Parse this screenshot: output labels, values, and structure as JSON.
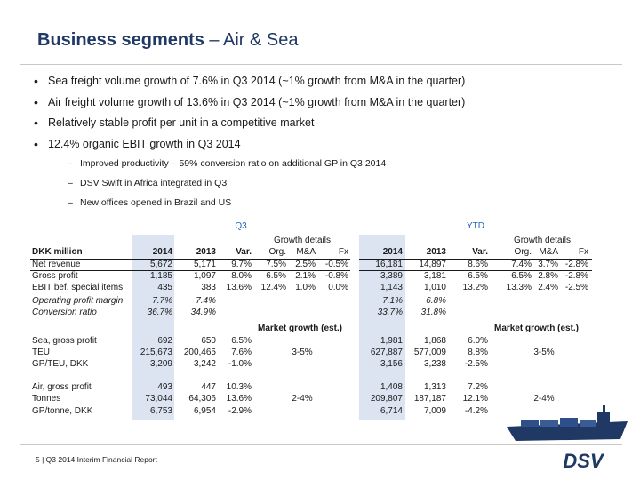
{
  "title": {
    "bold": "Business segments",
    "rest": "– Air & Sea"
  },
  "bullets": [
    "Sea freight volume growth of 7.6% in Q3 2014 (~1% growth from M&A in the quarter)",
    "Air freight volume growth of 13.6% in Q3 2014 (~1% growth from M&A in the quarter)",
    "Relatively stable profit per unit in a competitive market",
    "12.4% organic EBIT growth in Q3 2014"
  ],
  "subbullets": [
    "Improved productivity – 59% conversion ratio on additional GP in Q3 2014",
    "DSV Swift in Africa integrated in Q3",
    "New offices opened in Brazil and US"
  ],
  "table": {
    "q3_label": "Q3",
    "ytd_label": "YTD",
    "growth_details": "Growth details",
    "header": {
      "label": "DKK million",
      "y2014": "2014",
      "y2013": "2013",
      "var": "Var.",
      "org": "Org.",
      "ma": "M&A",
      "fx": "Fx"
    },
    "market_growth": "Market growth (est.)",
    "rows": [
      {
        "label": "Net revenue",
        "q3": [
          "5,672",
          "5,171",
          "9.7%",
          "7.5%",
          "2.5%",
          "-0.5%"
        ],
        "ytd": [
          "16,181",
          "14,897",
          "8.6%",
          "7.4%",
          "3.7%",
          "-2.8%"
        ]
      },
      {
        "label": "Gross profit",
        "q3": [
          "1,185",
          "1,097",
          "8.0%",
          "6.5%",
          "2.1%",
          "-0.8%"
        ],
        "ytd": [
          "3,389",
          "3,181",
          "6.5%",
          "6.5%",
          "2.8%",
          "-2.8%"
        ]
      },
      {
        "label": "EBIT bef. special items",
        "q3": [
          "435",
          "383",
          "13.6%",
          "12.4%",
          "1.0%",
          "0.0%"
        ],
        "ytd": [
          "1,143",
          "1,010",
          "13.2%",
          "13.3%",
          "2.4%",
          "-2.5%"
        ]
      },
      {
        "label": "Operating profit margin",
        "q3": [
          "7.7%",
          "7.4%",
          "",
          "",
          "",
          ""
        ],
        "ytd": [
          "7.1%",
          "6.8%",
          "",
          "",
          "",
          ""
        ]
      },
      {
        "label": "Conversion ratio",
        "q3": [
          "36.7%",
          "34.9%",
          "",
          "",
          "",
          ""
        ],
        "ytd": [
          "33.7%",
          "31.8%",
          "",
          "",
          "",
          ""
        ]
      },
      {
        "label": "Sea, gross profit",
        "q3": [
          "692",
          "650",
          "6.5%"
        ],
        "ytd": [
          "1,981",
          "1,868",
          "6.0%"
        ]
      },
      {
        "label": "TEU",
        "q3": [
          "215,673",
          "200,465",
          "7.6%"
        ],
        "ytd": [
          "627,887",
          "577,009",
          "8.8%"
        ],
        "mg_q3": "3-5%",
        "mg_ytd": "3-5%"
      },
      {
        "label": "GP/TEU, DKK",
        "q3": [
          "3,209",
          "3,242",
          "-1.0%"
        ],
        "ytd": [
          "3,156",
          "3,238",
          "-2.5%"
        ]
      },
      {
        "label": "Air, gross profit",
        "q3": [
          "493",
          "447",
          "10.3%"
        ],
        "ytd": [
          "1,408",
          "1,313",
          "7.2%"
        ]
      },
      {
        "label": "Tonnes",
        "q3": [
          "73,044",
          "64,306",
          "13.6%"
        ],
        "ytd": [
          "209,807",
          "187,187",
          "12.1%"
        ],
        "mg_q3": "2-4%",
        "mg_ytd": "2-4%"
      },
      {
        "label": "GP/tonne, DKK",
        "q3": [
          "6,753",
          "6,954",
          "-2.9%"
        ],
        "ytd": [
          "6,714",
          "7,009",
          "-4.2%"
        ]
      }
    ]
  },
  "footer": "5 | Q3 2014 Interim Financial Report",
  "logo_text": "DSV",
  "colors": {
    "title": "#1f3864",
    "shade": "#dce3f1",
    "accent": "#1f5fb5"
  }
}
